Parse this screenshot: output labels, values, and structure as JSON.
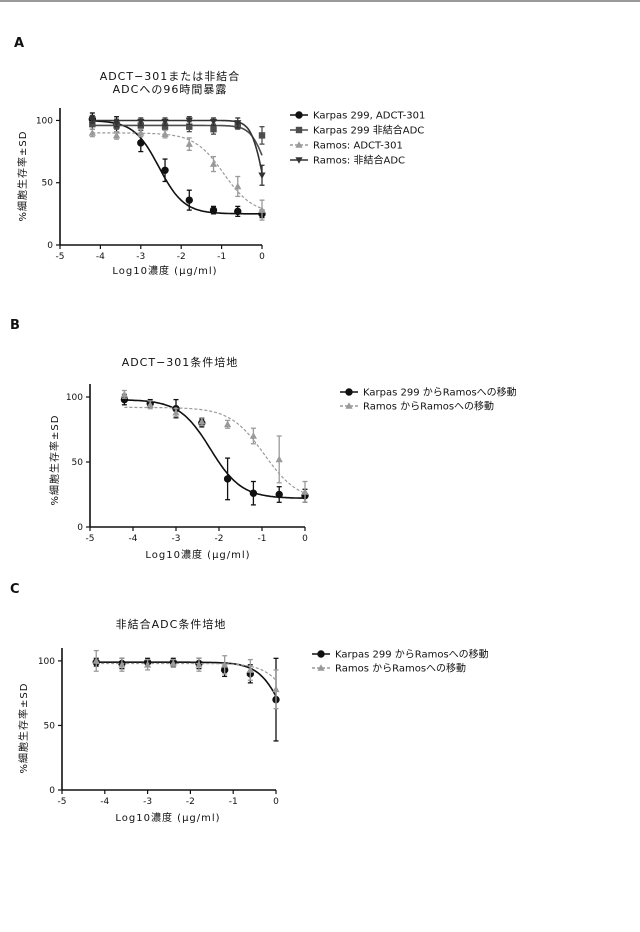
{
  "chart_data": [
    {
      "type": "line",
      "panel_label": "A",
      "title_lines": [
        "ADCT−301または非結合",
        "ADCへの96時間暴露"
      ],
      "xlabel": "Log10濃度 (μg/ml)",
      "ylabel": "%細胞生存率±SD",
      "xlim": [
        -5,
        0
      ],
      "ylim": [
        0,
        110
      ],
      "xticks": [
        "-5",
        "-4",
        "-3",
        "-2",
        "-1",
        "0"
      ],
      "yticks": [
        "0",
        "50",
        "100"
      ],
      "grid": false,
      "legend_position": "right",
      "x": [
        -4.2,
        -3.6,
        -3.0,
        -2.4,
        -1.8,
        -1.2,
        -0.6,
        0.0
      ],
      "series": [
        {
          "name": "Karpas 299, ADCT-301",
          "marker": "circle",
          "color": "#111111",
          "values": [
            101,
            97,
            82,
            60,
            36,
            28,
            27,
            25
          ],
          "err": [
            5,
            6,
            7,
            9,
            8,
            3,
            4,
            3
          ],
          "fit": {
            "top": 100,
            "bottom": 25,
            "ec50_log": -2.55,
            "hill": 1.4
          }
        },
        {
          "name": "Karpas 299 非結合ADC",
          "marker": "square",
          "color": "#4d4d4d",
          "values": [
            97,
            96,
            96,
            95,
            95,
            93,
            96,
            88
          ],
          "err": [
            4,
            3,
            4,
            3,
            4,
            4,
            3,
            7
          ],
          "fit": {
            "top": 96,
            "bottom": 40,
            "ec50_log": 0.05,
            "hill": 2.5
          }
        },
        {
          "name": "Ramos: ADCT-301",
          "marker": "triangle-up",
          "color": "#9a9a9a",
          "values": [
            90,
            88,
            90,
            89,
            81,
            65,
            47,
            28
          ],
          "err": [
            3,
            3,
            3,
            3,
            5,
            6,
            8,
            8
          ],
          "fit": {
            "top": 90,
            "bottom": 25,
            "ec50_log": -0.95,
            "hill": 1.2
          }
        },
        {
          "name": "Ramos: 非結合ADC",
          "marker": "triangle-down",
          "color": "#333333",
          "values": [
            101,
            98,
            99,
            99,
            100,
            99,
            98,
            56
          ],
          "err": [
            3,
            3,
            3,
            3,
            3,
            3,
            4,
            8
          ],
          "fit": {
            "top": 100,
            "bottom": 10,
            "ec50_log": 0.02,
            "hill": 3.0
          }
        }
      ]
    },
    {
      "type": "line",
      "panel_label": "B",
      "title_lines": [
        "ADCT−301条件培地"
      ],
      "xlabel": "Log10濃度 (μg/ml)",
      "ylabel": "%細胞生存率±SD",
      "xlim": [
        -5,
        0
      ],
      "ylim": [
        0,
        110
      ],
      "xticks": [
        "-5",
        "-4",
        "-3",
        "-2",
        "-1",
        "0"
      ],
      "yticks": [
        "0",
        "50",
        "100"
      ],
      "grid": false,
      "legend_position": "right",
      "x": [
        -4.2,
        -3.6,
        -3.0,
        -2.4,
        -1.8,
        -1.2,
        -0.6,
        0.0
      ],
      "series": [
        {
          "name": "Karpas 299 からRamosへの移動",
          "marker": "circle",
          "color": "#111111",
          "values": [
            98,
            95,
            91,
            80,
            37,
            26,
            25,
            24
          ],
          "err": [
            4,
            3,
            7,
            3,
            16,
            9,
            6,
            5
          ],
          "fit": {
            "top": 98,
            "bottom": 22,
            "ec50_log": -2.2,
            "hill": 1.2
          }
        },
        {
          "name": "Ramos からRamosへの移動",
          "marker": "triangle-up",
          "color": "#9a9a9a",
          "values": [
            102,
            94,
            88,
            81,
            79,
            70,
            52,
            27
          ],
          "err": [
            3,
            3,
            3,
            3,
            3,
            6,
            18,
            8
          ],
          "fit": {
            "top": 92,
            "bottom": 20,
            "ec50_log": -0.95,
            "hill": 1.1
          }
        }
      ]
    },
    {
      "type": "line",
      "panel_label": "C",
      "title_lines": [
        "非結合ADC条件培地"
      ],
      "xlabel": "Log10濃度 (μg/ml)",
      "ylabel": "%細胞生存率±SD",
      "xlim": [
        -5,
        0
      ],
      "ylim": [
        0,
        110
      ],
      "xticks": [
        "-5",
        "-4",
        "-3",
        "-2",
        "-1",
        "0"
      ],
      "yticks": [
        "0",
        "50",
        "100"
      ],
      "grid": false,
      "legend_position": "right",
      "x": [
        -4.2,
        -3.6,
        -3.0,
        -2.4,
        -1.8,
        -1.2,
        -0.6,
        0.0
      ],
      "series": [
        {
          "name": "Karpas 299 からRamosへの移動",
          "marker": "circle",
          "color": "#111111",
          "values": [
            99,
            98,
            99,
            99,
            98,
            93,
            90,
            70
          ],
          "err": [
            3,
            4,
            3,
            3,
            4,
            5,
            7,
            32
          ],
          "fit": {
            "top": 99,
            "bottom": 20,
            "ec50_log": 0.2,
            "hill": 1.5
          }
        },
        {
          "name": "Ramos からRamosへの移動",
          "marker": "triangle-up",
          "color": "#9a9a9a",
          "values": [
            100,
            97,
            97,
            98,
            97,
            97,
            93,
            78
          ],
          "err": [
            8,
            5,
            4,
            3,
            5,
            7,
            8,
            15
          ],
          "fit": {
            "top": 98,
            "bottom": 20,
            "ec50_log": 0.5,
            "hill": 1.4
          }
        }
      ]
    }
  ]
}
